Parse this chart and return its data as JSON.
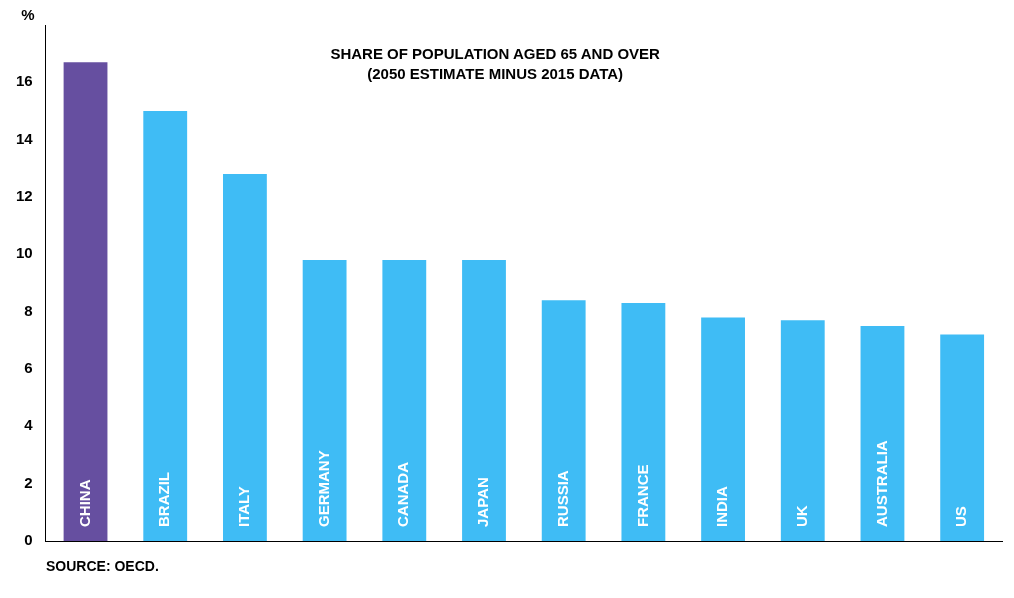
{
  "chart_data": {
    "type": "bar",
    "title": "SHARE OF POPULATION AGED 65 AND OVER\n(2050 ESTIMATE MINUS 2015 DATA)",
    "ylabel": "%",
    "categories": [
      "CHINA",
      "BRAZIL",
      "ITALY",
      "GERMANY",
      "CANADA",
      "JAPAN",
      "RUSSIA",
      "FRANCE",
      "INDIA",
      "UK",
      "AUSTRALIA",
      "US"
    ],
    "values": [
      16.7,
      15.0,
      12.8,
      9.8,
      9.8,
      9.8,
      8.4,
      8.3,
      7.8,
      7.7,
      7.5,
      7.2
    ],
    "colors": [
      "#664fa0",
      "#3fbcf5",
      "#3fbcf5",
      "#3fbcf5",
      "#3fbcf5",
      "#3fbcf5",
      "#3fbcf5",
      "#3fbcf5",
      "#3fbcf5",
      "#3fbcf5",
      "#3fbcf5",
      "#3fbcf5"
    ],
    "ylim": [
      0,
      18
    ],
    "yticks": [
      0,
      2,
      4,
      6,
      8,
      10,
      12,
      14,
      16
    ],
    "grid": false,
    "legend": false,
    "annotations": [
      "SOURCE: OECD."
    ]
  }
}
